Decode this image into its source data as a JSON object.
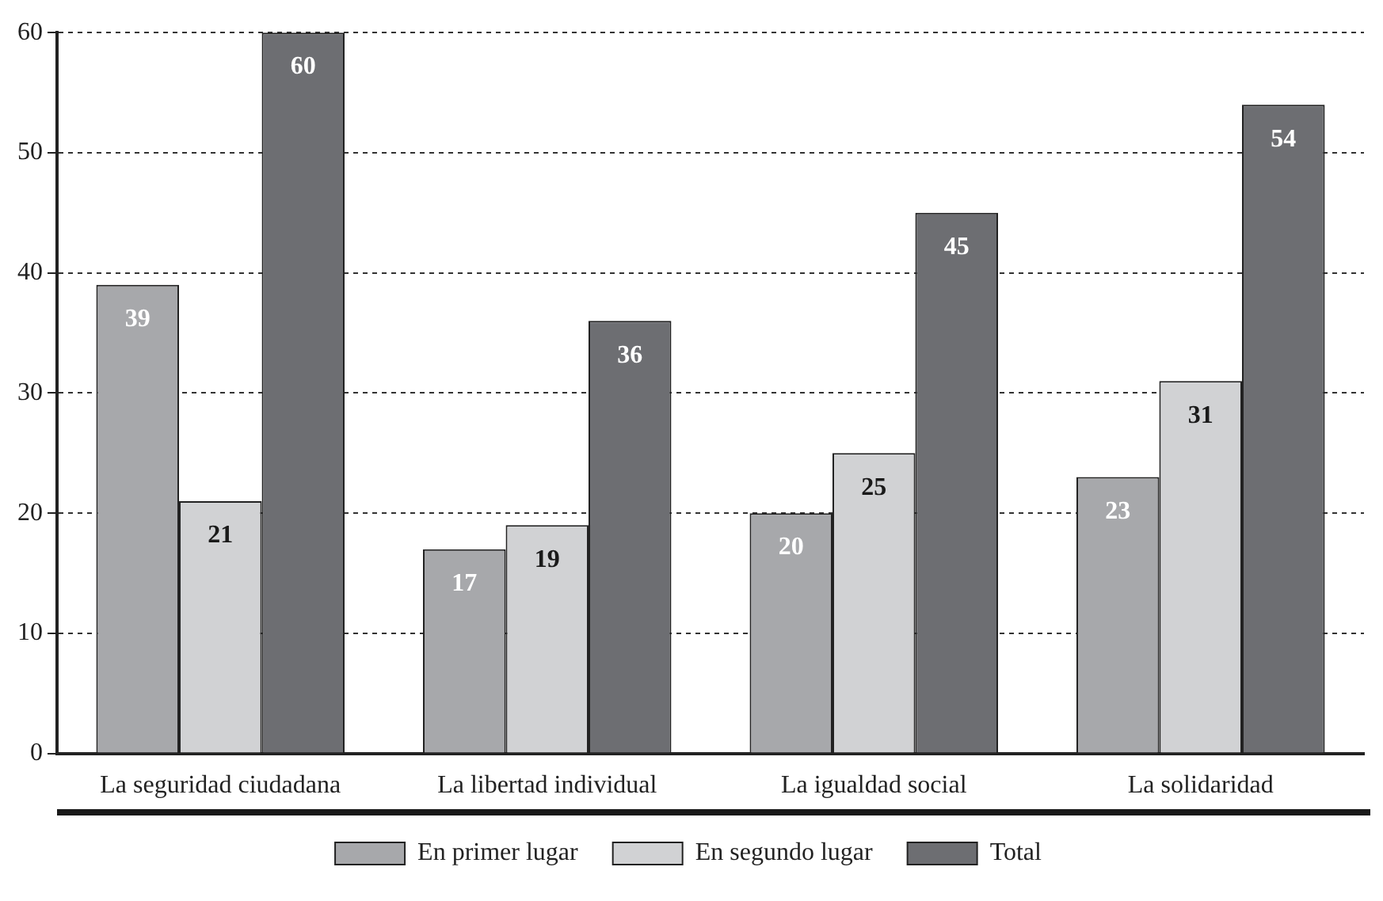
{
  "chart_data": {
    "type": "bar",
    "categories": [
      "La seguridad ciudadana",
      "La libertad individual",
      "La igualdad social",
      "La solidaridad"
    ],
    "series": [
      {
        "name": "En primer lugar",
        "color": "#a7a8ab",
        "values": [
          39,
          17,
          20,
          23
        ]
      },
      {
        "name": "En segundo lugar",
        "color": "#d1d2d4",
        "values": [
          21,
          19,
          25,
          31
        ]
      },
      {
        "name": "Total",
        "color": "#6d6e72",
        "values": [
          60,
          36,
          45,
          54
        ]
      }
    ],
    "ylim": [
      0,
      60
    ],
    "yticks": [
      0,
      10,
      20,
      30,
      40,
      50,
      60
    ],
    "grid": "y",
    "legend": "bottom",
    "data_labels": true
  }
}
